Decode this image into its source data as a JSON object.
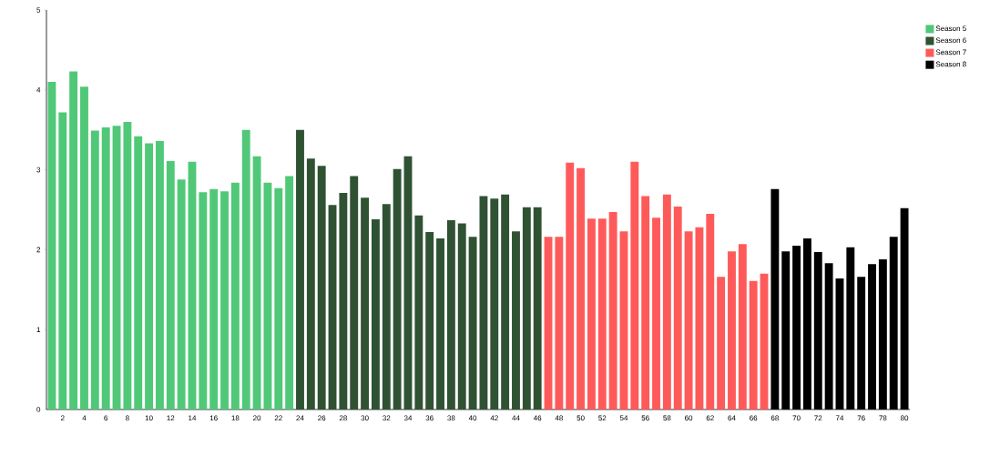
{
  "chart_data": {
    "type": "bar",
    "xlim": [
      0.5,
      80.5
    ],
    "xticks": [
      2,
      4,
      6,
      8,
      10,
      12,
      14,
      16,
      18,
      20,
      22,
      24,
      26,
      28,
      30,
      32,
      34,
      36,
      38,
      40,
      42,
      44,
      46,
      48,
      50,
      52,
      54,
      56,
      58,
      60,
      62,
      64,
      66,
      68,
      70,
      72,
      74,
      76,
      78,
      80
    ],
    "ylim": [
      0,
      5
    ],
    "yticks": [
      0,
      1,
      2,
      3,
      4,
      5
    ],
    "legend": "top right",
    "series": [
      {
        "name": "Season 5",
        "color": "#50c878",
        "x": [
          1,
          2,
          3,
          4,
          5,
          6,
          7,
          8,
          9,
          10,
          11,
          12,
          13,
          14,
          15,
          16,
          17,
          18,
          19,
          20,
          21,
          22,
          23
        ],
        "values": [
          4.1,
          3.72,
          4.23,
          4.04,
          3.49,
          3.53,
          3.55,
          3.6,
          3.42,
          3.33,
          3.36,
          3.11,
          2.88,
          3.1,
          2.72,
          2.76,
          2.73,
          2.84,
          3.5,
          3.17,
          2.84,
          2.77,
          2.92
        ]
      },
      {
        "name": "Season 6",
        "color": "#2f5233",
        "x": [
          24,
          25,
          26,
          27,
          28,
          29,
          30,
          31,
          32,
          33,
          34,
          35,
          36,
          37,
          38,
          39,
          40,
          41,
          42,
          43,
          44,
          45,
          46
        ],
        "values": [
          3.5,
          3.14,
          3.05,
          2.56,
          2.71,
          2.92,
          2.65,
          2.38,
          2.57,
          3.01,
          3.17,
          2.43,
          2.22,
          2.14,
          2.37,
          2.33,
          2.16,
          2.67,
          2.64,
          2.69,
          2.23,
          2.53,
          2.53
        ]
      },
      {
        "name": "Season 7",
        "color": "#ff5a5a",
        "x": [
          47,
          48,
          49,
          50,
          51,
          52,
          53,
          54,
          55,
          56,
          57,
          58,
          59,
          60,
          61,
          62,
          63,
          64,
          65,
          66,
          67
        ],
        "values": [
          2.16,
          2.16,
          3.09,
          3.02,
          2.39,
          2.39,
          2.47,
          2.23,
          3.1,
          2.67,
          2.4,
          2.69,
          2.54,
          2.23,
          2.28,
          2.45,
          1.66,
          1.98,
          2.07,
          1.61,
          1.7
        ]
      },
      {
        "name": "Season 8",
        "color": "#000000",
        "x": [
          68,
          69,
          70,
          71,
          72,
          73,
          74,
          75,
          76,
          77,
          78,
          79,
          80
        ],
        "values": [
          2.76,
          1.98,
          2.05,
          2.14,
          1.97,
          1.83,
          1.64,
          2.03,
          1.66,
          1.82,
          1.88,
          2.16,
          2.52
        ]
      }
    ]
  }
}
